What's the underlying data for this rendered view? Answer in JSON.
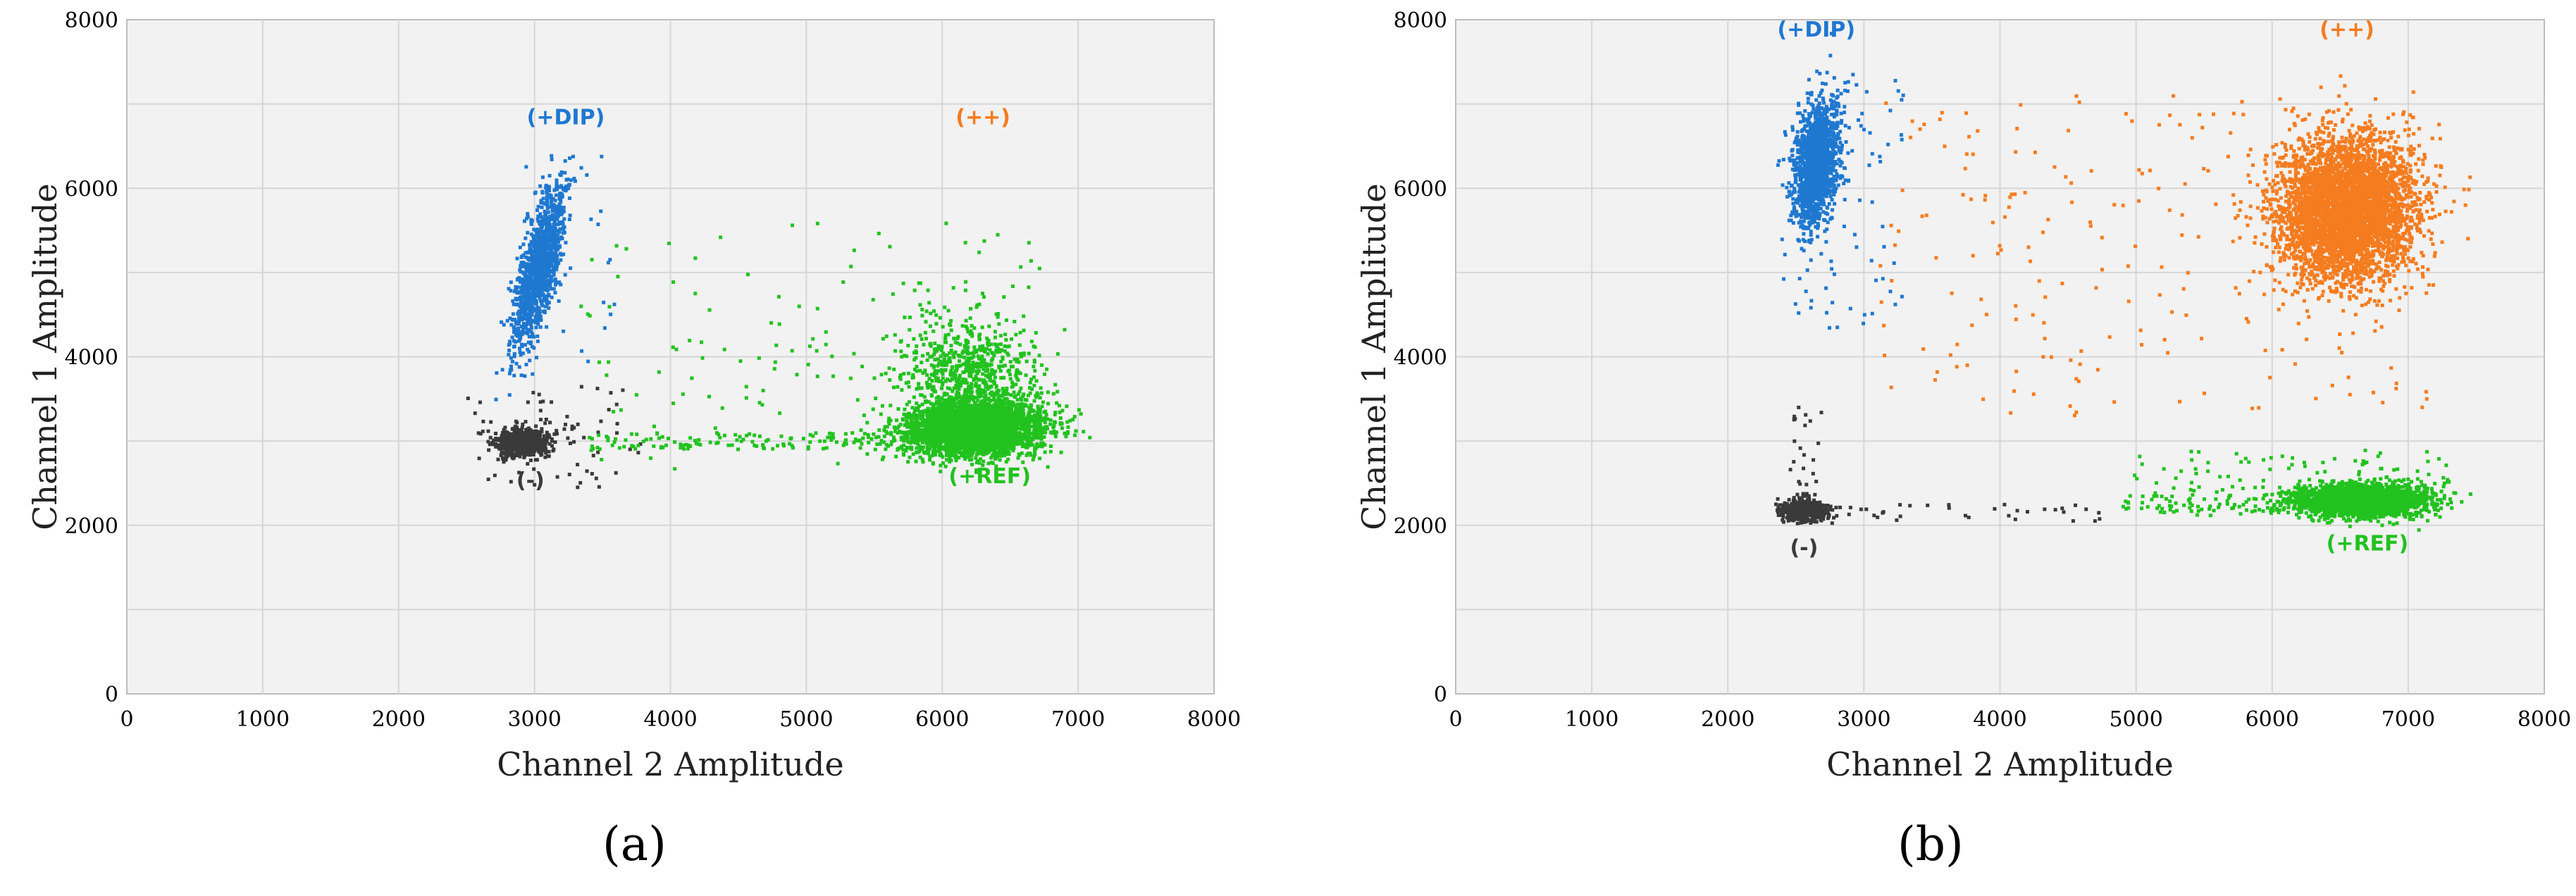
{
  "chart_data": [
    {
      "type": "scatter",
      "panel_label": "(a)",
      "xlabel": "Channel 2 Amplitude",
      "ylabel": "Channel 1 Amplitude",
      "xlim": [
        0,
        8000
      ],
      "ylim": [
        0,
        8000
      ],
      "xticks": [
        0,
        1000,
        2000,
        3000,
        4000,
        5000,
        6000,
        7000,
        8000
      ],
      "yticks": [
        0,
        2000,
        4000,
        6000,
        8000
      ],
      "grid": true,
      "series": [
        {
          "name": "(-)",
          "color": "#3a3a3a",
          "label_pos": [
            2970,
            2450
          ],
          "clusters": [
            {
              "cx": 2900,
              "cy": 2980,
              "sx": 90,
              "sy": 80,
              "n": 700,
              "rho": 0
            }
          ],
          "scatter": {
            "x0": 2500,
            "x1": 3800,
            "y0": 2450,
            "y1": 3650,
            "n": 70
          }
        },
        {
          "name": "(+DIP)",
          "color": "#1f78d0",
          "label_pos": [
            3230,
            6760
          ],
          "clusters": [
            {
              "cx": 3030,
              "cy": 5050,
              "sx": 95,
              "sy": 480,
              "n": 1300,
              "rho": 0.72
            }
          ],
          "scatter": {
            "x0": 2900,
            "x1": 3600,
            "y0": 3900,
            "y1": 6400,
            "n": 40
          }
        },
        {
          "name": "(+REF)",
          "color": "#22c21f",
          "label_pos": [
            6350,
            2500
          ],
          "clusters": [
            {
              "cx": 6250,
              "cy": 3150,
              "sx": 250,
              "sy": 160,
              "n": 3200,
              "rho": 0.1
            },
            {
              "cx": 6200,
              "cy": 3800,
              "sx": 250,
              "sy": 330,
              "n": 700,
              "rho": 0
            }
          ],
          "scatter": {
            "x0": 3300,
            "x1": 6800,
            "y0": 2550,
            "y1": 5600,
            "n": 140
          },
          "trail": {
            "x0": 3400,
            "x1": 5900,
            "y0": 2900,
            "y1": 3100,
            "n": 130
          }
        },
        {
          "name": "(++)",
          "color": "#f57c1f",
          "label_pos": [
            6300,
            6760
          ],
          "clusters": [],
          "scatter": null
        }
      ]
    },
    {
      "type": "scatter",
      "panel_label": "(b)",
      "xlabel": "Channel 2 Amplitude",
      "ylabel": "Channel 1 Amplitude",
      "xlim": [
        0,
        8000
      ],
      "ylim": [
        0,
        8000
      ],
      "xticks": [
        0,
        1000,
        2000,
        3000,
        4000,
        5000,
        6000,
        7000,
        8000
      ],
      "yticks": [
        0,
        2000,
        4000,
        6000,
        8000
      ],
      "grid": true,
      "series": [
        {
          "name": "(-)",
          "color": "#3a3a3a",
          "label_pos": [
            2560,
            1650
          ],
          "clusters": [
            {
              "cx": 2550,
              "cy": 2180,
              "sx": 80,
              "sy": 60,
              "n": 600,
              "rho": 0
            }
          ],
          "scatter": {
            "x0": 2300,
            "x1": 4900,
            "y0": 2050,
            "y1": 2250,
            "n": 40
          },
          "trail": {
            "x0": 2450,
            "x1": 2700,
            "y0": 2300,
            "y1": 3400,
            "n": 25
          }
        },
        {
          "name": "(+DIP)",
          "color": "#1f78d0",
          "label_pos": [
            2650,
            7800
          ],
          "clusters": [
            {
              "cx": 2650,
              "cy": 6300,
              "sx": 85,
              "sy": 380,
              "n": 1400,
              "rho": 0.3
            }
          ],
          "scatter": {
            "x0": 2450,
            "x1": 3300,
            "y0": 4300,
            "y1": 7300,
            "n": 70
          }
        },
        {
          "name": "(++)",
          "color": "#f57c1f",
          "label_pos": [
            6550,
            7800
          ],
          "clusters": [
            {
              "cx": 6550,
              "cy": 5750,
              "sx": 250,
              "sy": 420,
              "n": 4200,
              "rho": 0
            }
          ],
          "scatter": {
            "x0": 3100,
            "x1": 7200,
            "y0": 3300,
            "y1": 7100,
            "n": 230
          }
        },
        {
          "name": "(+REF)",
          "color": "#22c21f",
          "label_pos": [
            6700,
            1700
          ],
          "clusters": [
            {
              "cx": 6650,
              "cy": 2290,
              "sx": 230,
              "sy": 90,
              "n": 2600,
              "rho": 0
            }
          ],
          "scatter": {
            "x0": 4900,
            "x1": 7300,
            "y0": 2100,
            "y1": 2900,
            "n": 120
          },
          "trail": {
            "x0": 4900,
            "x1": 6100,
            "y0": 2150,
            "y1": 2350,
            "n": 60
          }
        }
      ]
    }
  ]
}
